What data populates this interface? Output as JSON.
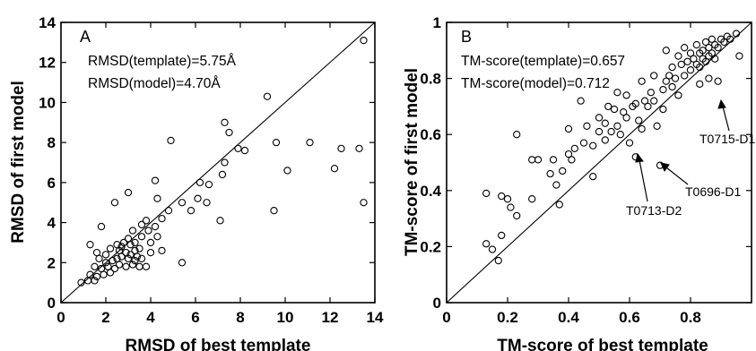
{
  "chart_data": [
    {
      "type": "scatter",
      "panel": "A",
      "xlabel": "RMSD of best template",
      "ylabel": "RMSD of first model",
      "xlim": [
        0,
        14
      ],
      "ylim": [
        0,
        14
      ],
      "xticks": [
        "0",
        "2",
        "4",
        "6",
        "8",
        "10",
        "12",
        "14"
      ],
      "yticks": [
        "0",
        "2",
        "4",
        "6",
        "8",
        "10",
        "12",
        "14"
      ],
      "diagonal": true,
      "grid": false,
      "annotations": [
        "RMSD(template)=5.75Å",
        "RMSD(model)=4.70Å"
      ],
      "points": [
        [
          13.5,
          13.1
        ],
        [
          9.2,
          10.3
        ],
        [
          7.3,
          9.0
        ],
        [
          4.9,
          8.1
        ],
        [
          7.5,
          8.5
        ],
        [
          7.9,
          7.7
        ],
        [
          8.2,
          7.6
        ],
        [
          7.3,
          7.0
        ],
        [
          9.6,
          8.0
        ],
        [
          11.1,
          8.0
        ],
        [
          12.5,
          7.7
        ],
        [
          13.3,
          7.7
        ],
        [
          7.2,
          6.4
        ],
        [
          10.1,
          6.6
        ],
        [
          12.2,
          6.7
        ],
        [
          6.2,
          6.0
        ],
        [
          6.6,
          5.9
        ],
        [
          4.2,
          6.1
        ],
        [
          3.0,
          5.5
        ],
        [
          2.4,
          5.0
        ],
        [
          4.3,
          5.2
        ],
        [
          5.4,
          5.0
        ],
        [
          6.1,
          5.2
        ],
        [
          6.5,
          5.0
        ],
        [
          13.5,
          5.0
        ],
        [
          5.8,
          4.6
        ],
        [
          4.5,
          4.2
        ],
        [
          4.8,
          4.6
        ],
        [
          3.8,
          4.1
        ],
        [
          4.2,
          3.8
        ],
        [
          3.6,
          3.9
        ],
        [
          3.2,
          3.6
        ],
        [
          3.6,
          3.3
        ],
        [
          4.0,
          3.0
        ],
        [
          7.1,
          4.1
        ],
        [
          9.5,
          4.6
        ],
        [
          1.8,
          3.8
        ],
        [
          2.5,
          2.9
        ],
        [
          2.8,
          3.0
        ],
        [
          3.1,
          2.9
        ],
        [
          3.3,
          3.0
        ],
        [
          3.5,
          2.7
        ],
        [
          2.2,
          2.7
        ],
        [
          2.6,
          2.6
        ],
        [
          2.9,
          2.5
        ],
        [
          3.1,
          2.4
        ],
        [
          3.4,
          2.3
        ],
        [
          2.0,
          2.4
        ],
        [
          1.7,
          2.2
        ],
        [
          2.0,
          2.0
        ],
        [
          2.3,
          2.1
        ],
        [
          2.5,
          2.2
        ],
        [
          2.7,
          2.3
        ],
        [
          3.0,
          2.2
        ],
        [
          3.3,
          2.1
        ],
        [
          3.6,
          2.2
        ],
        [
          1.5,
          1.8
        ],
        [
          1.8,
          1.7
        ],
        [
          2.1,
          1.8
        ],
        [
          2.4,
          1.7
        ],
        [
          2.6,
          1.9
        ],
        [
          2.9,
          1.8
        ],
        [
          3.2,
          1.9
        ],
        [
          3.5,
          1.8
        ],
        [
          1.3,
          1.4
        ],
        [
          1.6,
          1.3
        ],
        [
          1.9,
          1.4
        ],
        [
          2.2,
          1.5
        ],
        [
          0.9,
          1.0
        ],
        [
          1.2,
          1.1
        ],
        [
          1.5,
          1.1
        ],
        [
          1.3,
          2.9
        ],
        [
          1.6,
          2.5
        ],
        [
          3.8,
          1.8
        ],
        [
          4.5,
          2.6
        ],
        [
          5.4,
          2.0
        ],
        [
          4.0,
          2.5
        ],
        [
          4.3,
          3.3
        ],
        [
          3.9,
          3.6
        ],
        [
          2.7,
          2.8
        ],
        [
          3.0,
          3.2
        ],
        [
          3.3,
          2.6
        ]
      ]
    },
    {
      "type": "scatter",
      "panel": "B",
      "xlabel": "TM-score of best template",
      "ylabel": "TM-score of first model",
      "xlim": [
        0,
        1
      ],
      "ylim": [
        0,
        1
      ],
      "xticks": [
        "0",
        "0.2",
        "0.4",
        "0.6",
        "0.8"
      ],
      "yticks": [
        "0",
        "0.2",
        "0.4",
        "0.6",
        "0.8",
        "1"
      ],
      "diagonal": true,
      "grid": false,
      "annotations": [
        "TM-score(template)=0.657",
        "TM-score(model)=0.712"
      ],
      "callouts": [
        {
          "label": "T0715-D1",
          "x": 0.89,
          "y": 0.79
        },
        {
          "label": "T0696-D1",
          "x": 0.7,
          "y": 0.49
        },
        {
          "label": "T0713-D2",
          "x": 0.62,
          "y": 0.52
        }
      ],
      "points": [
        [
          0.13,
          0.21
        ],
        [
          0.15,
          0.19
        ],
        [
          0.13,
          0.39
        ],
        [
          0.18,
          0.38
        ],
        [
          0.2,
          0.37
        ],
        [
          0.18,
          0.24
        ],
        [
          0.17,
          0.15
        ],
        [
          0.21,
          0.34
        ],
        [
          0.23,
          0.31
        ],
        [
          0.23,
          0.6
        ],
        [
          0.28,
          0.51
        ],
        [
          0.3,
          0.51
        ],
        [
          0.28,
          0.37
        ],
        [
          0.34,
          0.46
        ],
        [
          0.36,
          0.42
        ],
        [
          0.37,
          0.35
        ],
        [
          0.38,
          0.47
        ],
        [
          0.4,
          0.53
        ],
        [
          0.41,
          0.51
        ],
        [
          0.4,
          0.62
        ],
        [
          0.42,
          0.55
        ],
        [
          0.44,
          0.72
        ],
        [
          0.46,
          0.63
        ],
        [
          0.48,
          0.45
        ],
        [
          0.48,
          0.56
        ],
        [
          0.5,
          0.61
        ],
        [
          0.5,
          0.66
        ],
        [
          0.52,
          0.58
        ],
        [
          0.53,
          0.7
        ],
        [
          0.54,
          0.61
        ],
        [
          0.55,
          0.69
        ],
        [
          0.56,
          0.63
        ],
        [
          0.56,
          0.75
        ],
        [
          0.58,
          0.68
        ],
        [
          0.59,
          0.74
        ],
        [
          0.59,
          0.66
        ],
        [
          0.6,
          0.57
        ],
        [
          0.61,
          0.7
        ],
        [
          0.62,
          0.71
        ],
        [
          0.62,
          0.52
        ],
        [
          0.63,
          0.65
        ],
        [
          0.64,
          0.79
        ],
        [
          0.65,
          0.72
        ],
        [
          0.66,
          0.7
        ],
        [
          0.67,
          0.75
        ],
        [
          0.68,
          0.81
        ],
        [
          0.69,
          0.63
        ],
        [
          0.7,
          0.49
        ],
        [
          0.71,
          0.76
        ],
        [
          0.71,
          0.69
        ],
        [
          0.72,
          0.9
        ],
        [
          0.72,
          0.79
        ],
        [
          0.73,
          0.81
        ],
        [
          0.74,
          0.84
        ],
        [
          0.75,
          0.8
        ],
        [
          0.76,
          0.88
        ],
        [
          0.76,
          0.74
        ],
        [
          0.77,
          0.85
        ],
        [
          0.78,
          0.91
        ],
        [
          0.78,
          0.81
        ],
        [
          0.79,
          0.86
        ],
        [
          0.8,
          0.83
        ],
        [
          0.8,
          0.89
        ],
        [
          0.81,
          0.87
        ],
        [
          0.82,
          0.92
        ],
        [
          0.82,
          0.85
        ],
        [
          0.83,
          0.89
        ],
        [
          0.83,
          0.84
        ],
        [
          0.84,
          0.9
        ],
        [
          0.84,
          0.87
        ],
        [
          0.85,
          0.93
        ],
        [
          0.85,
          0.86
        ],
        [
          0.86,
          0.91
        ],
        [
          0.86,
          0.88
        ],
        [
          0.87,
          0.94
        ],
        [
          0.87,
          0.89
        ],
        [
          0.88,
          0.92
        ],
        [
          0.88,
          0.87
        ],
        [
          0.89,
          0.79
        ],
        [
          0.89,
          0.91
        ],
        [
          0.9,
          0.94
        ],
        [
          0.91,
          0.93
        ],
        [
          0.92,
          0.95
        ],
        [
          0.93,
          0.94
        ],
        [
          0.95,
          0.96
        ],
        [
          0.96,
          0.88
        ],
        [
          0.83,
          0.78
        ],
        [
          0.86,
          0.8
        ],
        [
          0.74,
          0.77
        ],
        [
          0.68,
          0.72
        ],
        [
          0.64,
          0.62
        ],
        [
          0.57,
          0.6
        ],
        [
          0.52,
          0.64
        ],
        [
          0.45,
          0.57
        ],
        [
          0.35,
          0.51
        ]
      ]
    }
  ]
}
